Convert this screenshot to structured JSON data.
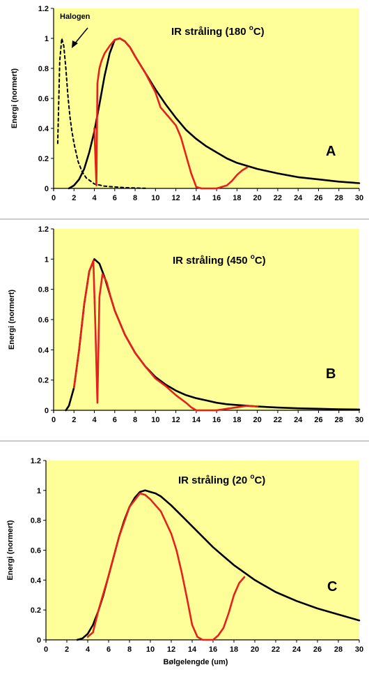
{
  "colors": {
    "plot_bg": "#ffff99",
    "sep_line": "#999999",
    "blackbody": "#000000",
    "absorption": "#e8201c",
    "halogen": "#000000"
  },
  "chart_data": [
    {
      "type": "line",
      "title_text": "IR stråling (180 ",
      "title_sup": "o",
      "title_unit": "C)",
      "letter": "A",
      "ylabel": "Energi (normert)",
      "xlabel": "",
      "xlim": [
        0,
        30
      ],
      "ylim": [
        0,
        1.2
      ],
      "xticks": [
        "0",
        "2",
        "4",
        "6",
        "8",
        "10",
        "12",
        "14",
        "16",
        "18",
        "20",
        "22",
        "24",
        "26",
        "28",
        "30"
      ],
      "yticks": [
        "0",
        "0.2",
        "0.4",
        "0.6",
        "0.8",
        "1",
        "1.2"
      ],
      "annotation": "Halogen",
      "series": [
        {
          "role": "blackbody",
          "style": "solid",
          "x": [
            1.5,
            2,
            2.5,
            3,
            3.5,
            4,
            4.5,
            5,
            5.5,
            6,
            6.5,
            7,
            7.5,
            8,
            9,
            10,
            11,
            12,
            13,
            14,
            15,
            16,
            17,
            18,
            19,
            20,
            22,
            24,
            26,
            28,
            30
          ],
          "y": [
            0,
            0.02,
            0.06,
            0.13,
            0.24,
            0.38,
            0.56,
            0.75,
            0.9,
            0.99,
            1.0,
            0.98,
            0.94,
            0.88,
            0.77,
            0.66,
            0.56,
            0.47,
            0.39,
            0.33,
            0.28,
            0.24,
            0.2,
            0.17,
            0.15,
            0.13,
            0.1,
            0.075,
            0.06,
            0.045,
            0.035
          ]
        },
        {
          "role": "absorption",
          "style": "solid",
          "x": [
            4.0,
            4.2,
            4.3,
            4.5,
            4.7,
            5.0,
            5.5,
            6,
            6.5,
            7,
            7.5,
            8,
            9,
            10,
            10.5,
            11,
            12,
            12.5,
            13,
            13.5,
            14,
            14.5,
            15,
            15.5,
            16,
            16.5,
            17,
            17.5,
            18,
            18.5,
            19
          ],
          "y": [
            0.4,
            0.02,
            0.7,
            0.8,
            0.85,
            0.9,
            0.95,
            0.99,
            1.0,
            0.98,
            0.94,
            0.88,
            0.77,
            0.64,
            0.54,
            0.5,
            0.42,
            0.34,
            0.22,
            0.1,
            0.01,
            0,
            0,
            0,
            0,
            0.01,
            0.02,
            0.05,
            0.09,
            0.12,
            0.14
          ]
        },
        {
          "role": "halogen",
          "style": "dashed",
          "x": [
            0.4,
            0.6,
            0.8,
            1.0,
            1.2,
            1.4,
            1.6,
            1.8,
            2.0,
            2.4,
            2.8,
            3.2,
            3.6,
            4,
            5,
            6,
            7,
            8,
            9
          ],
          "y": [
            0.3,
            0.85,
            1.0,
            0.95,
            0.8,
            0.62,
            0.48,
            0.38,
            0.3,
            0.18,
            0.11,
            0.07,
            0.05,
            0.03,
            0.015,
            0.01,
            0.005,
            0.003,
            0.001
          ]
        }
      ]
    },
    {
      "type": "line",
      "title_text": "IR stråling (450 ",
      "title_sup": "o",
      "title_unit": "C)",
      "letter": "B",
      "ylabel": "Energi (normert)",
      "xlabel": "",
      "xlim": [
        0,
        30
      ],
      "ylim": [
        0,
        1.2
      ],
      "xticks": [
        "0",
        "2",
        "4",
        "6",
        "8",
        "10",
        "12",
        "14",
        "16",
        "18",
        "20",
        "22",
        "24",
        "26",
        "28",
        "30"
      ],
      "yticks": [
        "0",
        "0.2",
        "0.4",
        "0.6",
        "0.8",
        "1",
        "1.2"
      ],
      "series": [
        {
          "role": "blackbody",
          "style": "solid",
          "x": [
            1.2,
            1.5,
            2,
            2.5,
            3,
            3.5,
            4,
            4.5,
            5,
            5.5,
            6,
            7,
            8,
            9,
            10,
            11,
            12,
            13,
            14,
            15,
            16,
            17,
            18,
            20,
            22,
            24,
            26,
            28,
            30
          ],
          "y": [
            0,
            0.03,
            0.15,
            0.4,
            0.7,
            0.92,
            1.0,
            0.97,
            0.88,
            0.77,
            0.66,
            0.5,
            0.38,
            0.29,
            0.22,
            0.17,
            0.13,
            0.1,
            0.08,
            0.065,
            0.05,
            0.04,
            0.035,
            0.025,
            0.018,
            0.013,
            0.01,
            0.007,
            0.005
          ]
        },
        {
          "role": "absorption",
          "style": "solid",
          "x": [
            2,
            2.5,
            3,
            3.5,
            3.9,
            4.1,
            4.3,
            4.5,
            4.8,
            5.2,
            5.6,
            6,
            7,
            8,
            9,
            10,
            11,
            12,
            13,
            13.5,
            14,
            15,
            16,
            17,
            18,
            19,
            20
          ],
          "y": [
            0.15,
            0.4,
            0.7,
            0.92,
            0.99,
            0.55,
            0.05,
            0.75,
            0.9,
            0.85,
            0.75,
            0.66,
            0.5,
            0.38,
            0.29,
            0.21,
            0.16,
            0.1,
            0.05,
            0.02,
            0,
            0,
            0,
            0.01,
            0.02,
            0.03,
            0.025
          ]
        }
      ]
    },
    {
      "type": "line",
      "title_text": "IR stråling (20 ",
      "title_sup": "o",
      "title_unit": "C)",
      "letter": "C",
      "ylabel": "Energi (normert)",
      "xlabel": "Bølgelengde (um)",
      "xlim": [
        0,
        30
      ],
      "ylim": [
        0,
        1.2
      ],
      "xticks": [
        "0",
        "2",
        "4",
        "6",
        "8",
        "10",
        "12",
        "14",
        "16",
        "18",
        "20",
        "22",
        "24",
        "26",
        "28",
        "30"
      ],
      "yticks": [
        "0",
        "0.2",
        "0.4",
        "0.6",
        "0.8",
        "1",
        "1.2"
      ],
      "series": [
        {
          "role": "blackbody",
          "style": "solid",
          "x": [
            3,
            3.5,
            4,
            4.5,
            5,
            5.5,
            6,
            6.5,
            7,
            7.5,
            8,
            8.5,
            9,
            9.5,
            10,
            10.5,
            11,
            12,
            13,
            14,
            15,
            16,
            17,
            18,
            19,
            20,
            22,
            24,
            26,
            28,
            30
          ],
          "y": [
            0,
            0.01,
            0.04,
            0.1,
            0.19,
            0.3,
            0.43,
            0.56,
            0.69,
            0.8,
            0.89,
            0.95,
            0.99,
            1.0,
            0.99,
            0.98,
            0.96,
            0.9,
            0.83,
            0.76,
            0.69,
            0.62,
            0.56,
            0.5,
            0.45,
            0.4,
            0.32,
            0.26,
            0.21,
            0.17,
            0.13
          ]
        },
        {
          "role": "absorption",
          "style": "solid",
          "x": [
            4,
            4.5,
            5,
            6,
            7,
            8,
            9,
            9.5,
            10,
            11,
            12,
            12.5,
            13,
            13.5,
            14,
            14.5,
            15,
            16,
            16.5,
            17,
            17.5,
            18,
            18.5,
            19
          ],
          "y": [
            0.02,
            0.05,
            0.19,
            0.43,
            0.69,
            0.89,
            0.98,
            0.97,
            0.94,
            0.86,
            0.71,
            0.6,
            0.45,
            0.28,
            0.1,
            0.02,
            0,
            0,
            0.03,
            0.08,
            0.18,
            0.3,
            0.38,
            0.42
          ]
        }
      ]
    }
  ]
}
